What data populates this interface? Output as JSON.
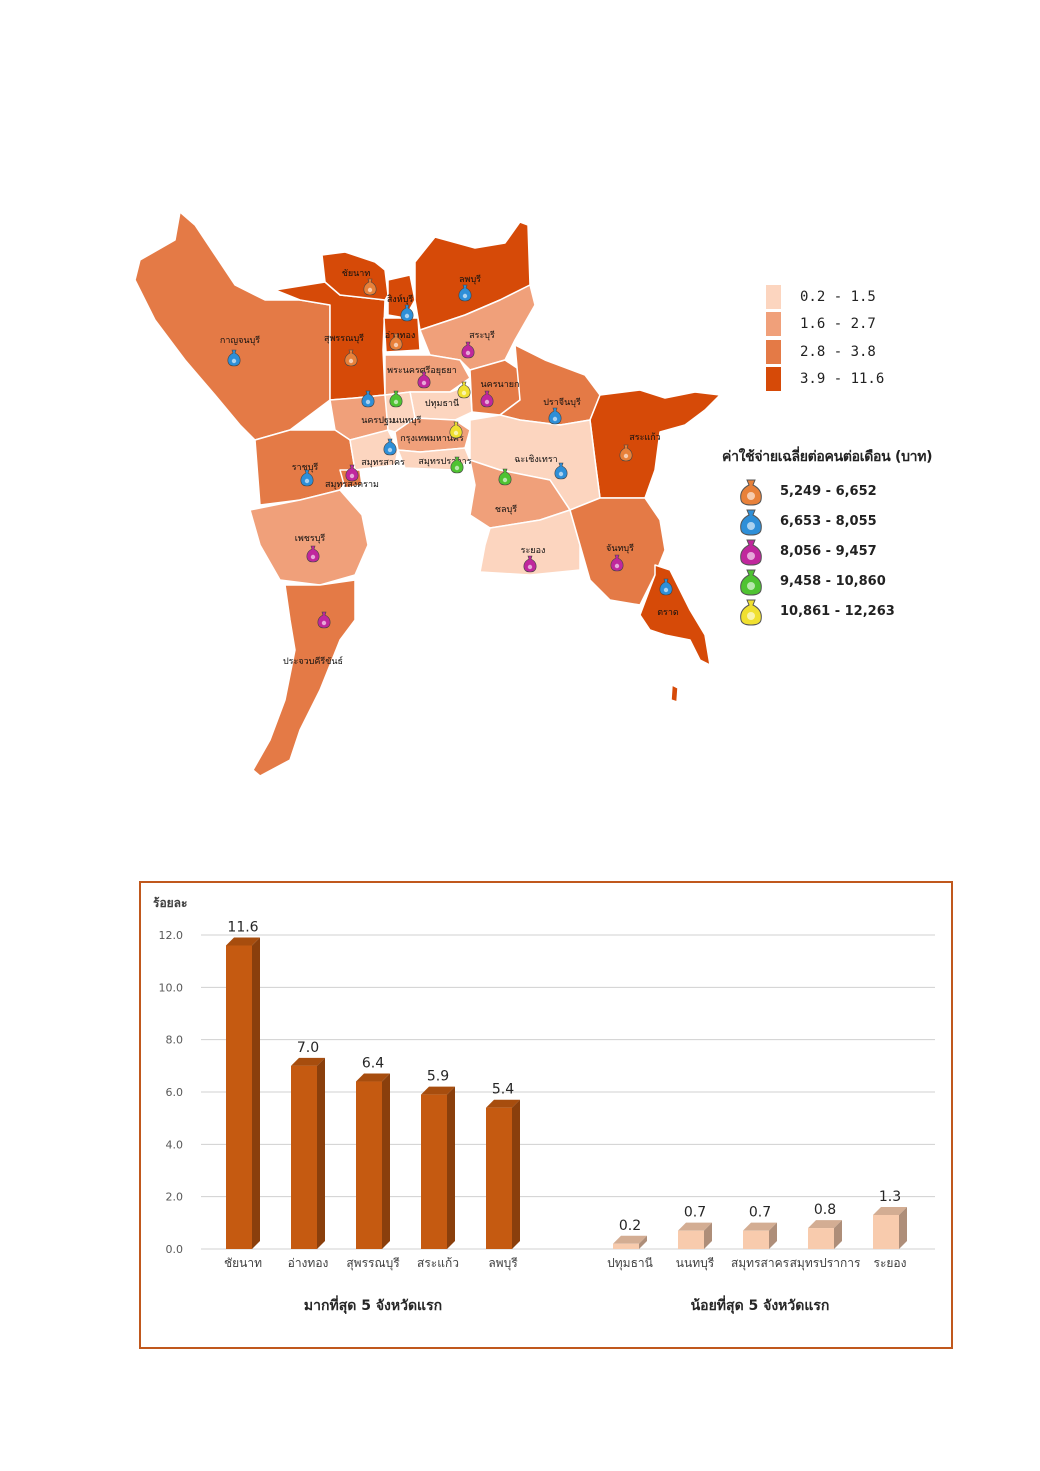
{
  "map": {
    "provinces": [
      "ชัยนาท",
      "สิงห์บุรี",
      "ลพบุรี",
      "กาญจนบุรี",
      "สุพรรณบุรี",
      "อ่างทอง",
      "สระบุรี",
      "พระนครศรีอยุธยา",
      "นครนายก",
      "ปทุมธานี",
      "ปราจีนบุรี",
      "นครปฐม",
      "นนทบุรี",
      "กรุงเทพมหานคร",
      "สระแก้ว",
      "ราชบุรี",
      "สมุทรสาคร",
      "สมุทรปราการ",
      "ฉะเชิงเทรา",
      "สมุทรสงคราม",
      "ชลบุรี",
      "เพชรบุรี",
      "ระยอง",
      "จันทบุรี",
      "ตราด",
      "ประจวบคีรีขันธ์"
    ],
    "range_legend": [
      {
        "label": "0.2 - 1.5",
        "color": "#fcd5bf"
      },
      {
        "label": "1.6 - 2.7",
        "color": "#f0a07a"
      },
      {
        "label": "2.8 - 3.8",
        "color": "#e47a46"
      },
      {
        "label": "3.9 - 11.6",
        "color": "#d64a08"
      }
    ],
    "expense_legend_title": "ค่าใช้จ่ายเฉลี่ยต่อคนต่อเดือน (บาท)",
    "expense_legend": [
      {
        "label": "5,249 - 6,652",
        "color": "#e8813a",
        "icon": "money-bag-orange-icon"
      },
      {
        "label": "6,653 - 8,055",
        "color": "#2e8fd8",
        "icon": "money-bag-blue-icon"
      },
      {
        "label": "8,056 - 9,457",
        "color": "#c0279d",
        "icon": "money-bag-magenta-icon"
      },
      {
        "label": "9,458 - 10,860",
        "color": "#4fc332",
        "icon": "money-bag-green-icon"
      },
      {
        "label": "10,861 - 12,263",
        "color": "#f0e030",
        "icon": "money-bag-yellow-icon"
      }
    ]
  },
  "chart_data": {
    "type": "bar",
    "ylabel": "ร้อยละ",
    "ylim": [
      0,
      12
    ],
    "yticks": [
      "0.0",
      "2.0",
      "4.0",
      "6.0",
      "8.0",
      "10.0",
      "12.0"
    ],
    "groups": [
      {
        "name": "มากที่สุด 5 จังหวัดแรก",
        "color": "#c55a11",
        "categories": [
          "ชัยนาท",
          "อ่างทอง",
          "สุพรรณบุรี",
          "สระแก้ว",
          "ลพบุรี"
        ],
        "values": [
          11.6,
          7.0,
          6.4,
          5.9,
          5.4
        ],
        "labels": [
          "11.6",
          "7.0",
          "6.4",
          "5.9",
          "5.4"
        ]
      },
      {
        "name": "น้อยที่สุด 5 จังหวัดแรก",
        "color": "#f8cbad",
        "categories": [
          "ปทุมธานี",
          "นนทบุรี",
          "สมุทรสาคร",
          "สมุทรปราการ",
          "ระยอง"
        ],
        "values": [
          0.2,
          0.7,
          0.7,
          0.8,
          1.3
        ],
        "labels": [
          "0.2",
          "0.7",
          "0.7",
          "0.8",
          "1.3"
        ]
      }
    ]
  }
}
